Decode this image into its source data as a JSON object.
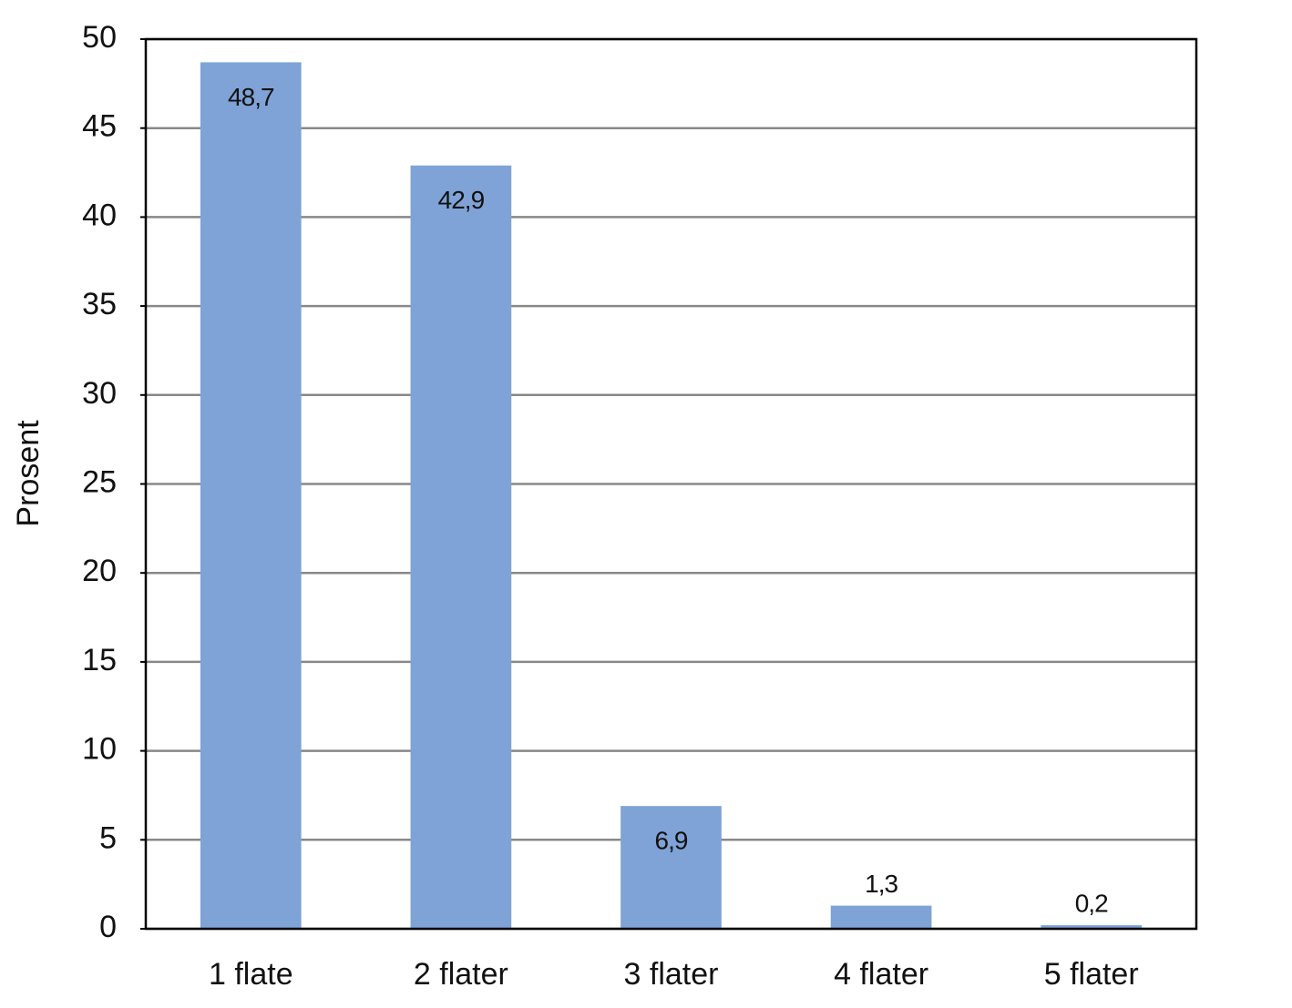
{
  "chart_data": {
    "type": "bar",
    "y_label": "Prosent",
    "categories": [
      "1 flate",
      "2 flater",
      "3 flater",
      "4 flater",
      "5 flater"
    ],
    "values": [
      48.7,
      42.9,
      6.9,
      1.3,
      0.2
    ],
    "value_labels": [
      "48,7",
      "42,9",
      "6,9",
      "1,3",
      "0,2"
    ],
    "color": "#7fa3d6",
    "ylim": [
      0,
      50
    ],
    "yticks": [
      0,
      5,
      10,
      15,
      20,
      25,
      30,
      35,
      40,
      45,
      50
    ],
    "grid": true
  }
}
